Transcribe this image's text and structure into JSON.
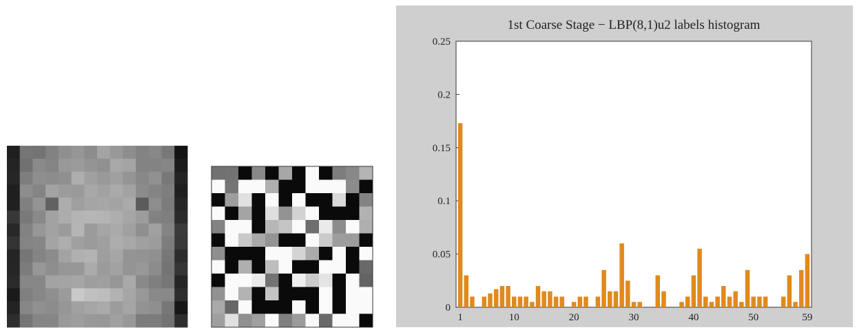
{
  "chart_data": {
    "type": "bar",
    "title": "1st Coarse Stage − LBP(8,1)u2 labels histogram",
    "x": [
      1,
      2,
      3,
      4,
      5,
      6,
      7,
      8,
      9,
      10,
      11,
      12,
      13,
      14,
      15,
      16,
      17,
      18,
      19,
      20,
      21,
      22,
      23,
      24,
      25,
      26,
      27,
      28,
      29,
      30,
      31,
      32,
      33,
      34,
      35,
      36,
      37,
      38,
      39,
      40,
      41,
      42,
      43,
      44,
      45,
      46,
      47,
      48,
      49,
      50,
      51,
      52,
      53,
      54,
      55,
      56,
      57,
      58,
      59
    ],
    "values": [
      0.173,
      0.03,
      0.01,
      0,
      0.01,
      0.013,
      0.017,
      0.02,
      0.02,
      0.01,
      0.01,
      0.01,
      0.005,
      0.02,
      0.015,
      0.015,
      0.01,
      0.01,
      0,
      0.005,
      0.01,
      0.01,
      0,
      0.01,
      0.035,
      0.015,
      0.015,
      0.06,
      0.025,
      0.005,
      0.005,
      0,
      0,
      0.03,
      0.015,
      0,
      0,
      0.005,
      0.01,
      0.03,
      0.055,
      0.01,
      0.005,
      0.01,
      0.02,
      0.01,
      0.015,
      0.005,
      0.035,
      0.01,
      0.01,
      0.01,
      0,
      0,
      0.01,
      0.03,
      0.005,
      0.035,
      0.05
    ],
    "color": "#e08a1e",
    "xlim": [
      0.3,
      59.7
    ],
    "xticks": [
      1,
      10,
      20,
      30,
      40,
      50,
      59
    ],
    "ylim": [
      0,
      0.25
    ],
    "yticks": [
      0,
      0.05,
      0.1,
      0.15,
      0.2,
      0.25
    ]
  }
}
